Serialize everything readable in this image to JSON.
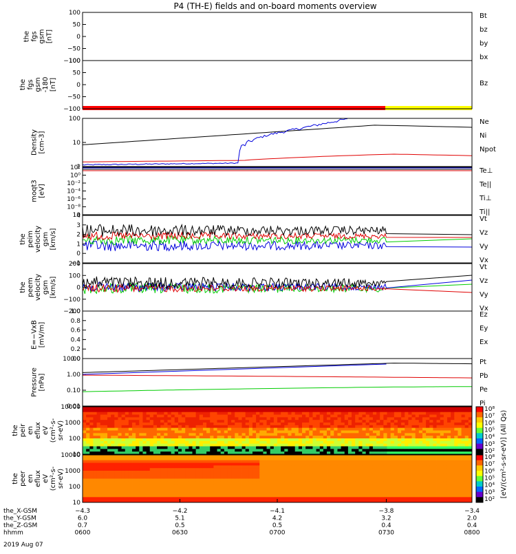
{
  "title": "P4 (TH-E) fields and on-board moments overview",
  "colors": {
    "black": "#000000",
    "red": "#e00000",
    "green": "#00cc00",
    "blue": "#0000dd",
    "yellow": "#ffff00"
  },
  "panels": [
    {
      "id": "fgs",
      "ylabel": [
        "the",
        "fgs",
        "gsm",
        "[nT]"
      ],
      "ticks": [
        "100",
        "50",
        "0",
        "−50",
        "−100"
      ],
      "legend": [
        {
          "text": "Bt",
          "color": "black"
        },
        {
          "text": "bz",
          "color": "red"
        },
        {
          "text": "by",
          "color": "green"
        },
        {
          "text": "bx",
          "color": "blue"
        }
      ]
    },
    {
      "id": "fgs2",
      "ylabel": [
        "the",
        "fgs",
        "gsm",
        "-180",
        "[nT]"
      ],
      "ticks": [
        "100",
        "50",
        "0",
        "−50",
        "−100"
      ],
      "legend": [
        {
          "text": "Bz",
          "color": "red"
        }
      ]
    },
    {
      "id": "density",
      "ylabel": [
        "Density",
        "[cm-3]"
      ],
      "ticks": [
        "100",
        "10",
        "1"
      ],
      "legend": [
        {
          "text": "Ne",
          "color": "red"
        },
        {
          "text": "Ni",
          "color": "black"
        },
        {
          "text": "Npot",
          "color": "blue"
        }
      ]
    },
    {
      "id": "temp",
      "ylabel": [
        "moqt3",
        "[eV]"
      ],
      "ticks": [
        "10²",
        "10⁰",
        "10⁻²",
        "10⁻⁴",
        "10⁻⁶",
        "10⁻⁸",
        "10"
      ],
      "legend": [
        {
          "text": "Te⊥",
          "color": "red"
        },
        {
          "text": "Te||",
          "color": "black"
        },
        {
          "text": "Ti⊥",
          "color": "blue"
        },
        {
          "text": "Ti||",
          "color": "green"
        }
      ]
    },
    {
      "id": "peimvel",
      "ylabel": [
        "the",
        "peim",
        "velocity",
        "gsm",
        "[km/s]"
      ],
      "ticks": [
        "4",
        "3",
        "2",
        "1",
        "0",
        "−1"
      ],
      "legend": [
        {
          "text": "Vt",
          "color": "black"
        },
        {
          "text": "Vz",
          "color": "red"
        },
        {
          "text": "Vy",
          "color": "green"
        },
        {
          "text": "Vx",
          "color": "blue"
        }
      ]
    },
    {
      "id": "peemvel",
      "ylabel": [
        "the",
        "peem",
        "velocity",
        "gsm",
        "[km/s]"
      ],
      "ticks": [
        "200",
        "100",
        "0",
        "−100",
        "−200"
      ],
      "legend": [
        {
          "text": "Vt",
          "color": "black"
        },
        {
          "text": "Vz",
          "color": "red"
        },
        {
          "text": "Vy",
          "color": "green"
        },
        {
          "text": "Vx",
          "color": "blue"
        }
      ]
    },
    {
      "id": "efield",
      "ylabel": [
        "E=−VxB",
        "[mV/m]"
      ],
      "ticks": [
        "1.0",
        "0.8",
        "0.6",
        "0.4",
        "0.2",
        "0.0"
      ],
      "legend": [
        {
          "text": "Ez",
          "color": "red"
        },
        {
          "text": "Ey",
          "color": "green"
        },
        {
          "text": "Ex",
          "color": "blue"
        }
      ]
    },
    {
      "id": "pressure",
      "ylabel": [
        "Pressure",
        "[nPa]"
      ],
      "ticks": [
        "10.00",
        "1.00",
        "0.10",
        "0.01"
      ],
      "legend": [
        {
          "text": "Pt",
          "color": "black"
        },
        {
          "text": "Pb",
          "color": "red"
        },
        {
          "text": "Pe",
          "color": "green"
        },
        {
          "text": "Pi",
          "color": "blue"
        }
      ]
    },
    {
      "id": "peir",
      "ylabel": [
        "the",
        "peir",
        "en",
        "eflux",
        "eV",
        "(cm²-s-",
        "sr-eV)"
      ],
      "ticks": [
        "10000",
        "1000",
        "100",
        "10"
      ]
    },
    {
      "id": "peer",
      "ylabel": [
        "the",
        "peer",
        "en",
        "eflux",
        "eV",
        "(cm²-s-",
        "sr-eV)"
      ],
      "ticks": [
        "10000",
        "1000",
        "100",
        "10"
      ]
    }
  ],
  "colorbar": {
    "label": "[eV/(cm²-s-sr-eV)] (All Qs)",
    "ticks_top": [
      "10⁸",
      "10⁷",
      "10⁶",
      "10⁵",
      "10⁴",
      "10³",
      "10²"
    ],
    "ticks_bottom": [
      "10⁸",
      "10⁷",
      "10⁶",
      "10⁵",
      "10⁴",
      "10³",
      "10²"
    ]
  },
  "xaxis": {
    "rows": [
      {
        "label": "the_X-GSM",
        "values": [
          "−4.3",
          "−4.2",
          "−4.1",
          "−3.8",
          "−3.4"
        ]
      },
      {
        "label": "the_Y-GSM",
        "values": [
          "6.0",
          "5.1",
          "4.2",
          "3.2",
          "2.0"
        ]
      },
      {
        "label": "the_Z-GSM",
        "values": [
          "0.7",
          "0.5",
          "0.5",
          "0.4",
          "0.4"
        ]
      },
      {
        "label": "hhmm",
        "values": [
          "0600",
          "0630",
          "0700",
          "0730",
          "0800"
        ]
      }
    ],
    "date": "2019 Aug 07"
  },
  "chart_data": {
    "type": "line",
    "x": [
      "0600",
      "0630",
      "0700",
      "0730",
      "0800"
    ],
    "density": {
      "series": [
        {
          "name": "Ni",
          "values": [
            9,
            25,
            45,
            90,
            70
          ]
        },
        {
          "name": "Ne",
          "values": [
            1.2,
            1.5,
            2.5,
            3.0,
            2.5
          ]
        },
        {
          "name": "Npot",
          "values": [
            0.8,
            1.0,
            50,
            180,
            null
          ]
        }
      ]
    },
    "pressure": {
      "series": [
        {
          "name": "Pt",
          "values": [
            1.3,
            2.5,
            4.0,
            5.0,
            4.5
          ]
        },
        {
          "name": "Pb",
          "values": [
            0.9,
            0.8,
            0.75,
            0.7,
            0.6
          ]
        },
        {
          "name": "Pe",
          "values": [
            0.08,
            0.12,
            0.15,
            0.18,
            0.17
          ]
        },
        {
          "name": "Pi",
          "values": [
            1.0,
            2.0,
            3.5,
            4.5,
            null
          ]
        }
      ]
    }
  }
}
